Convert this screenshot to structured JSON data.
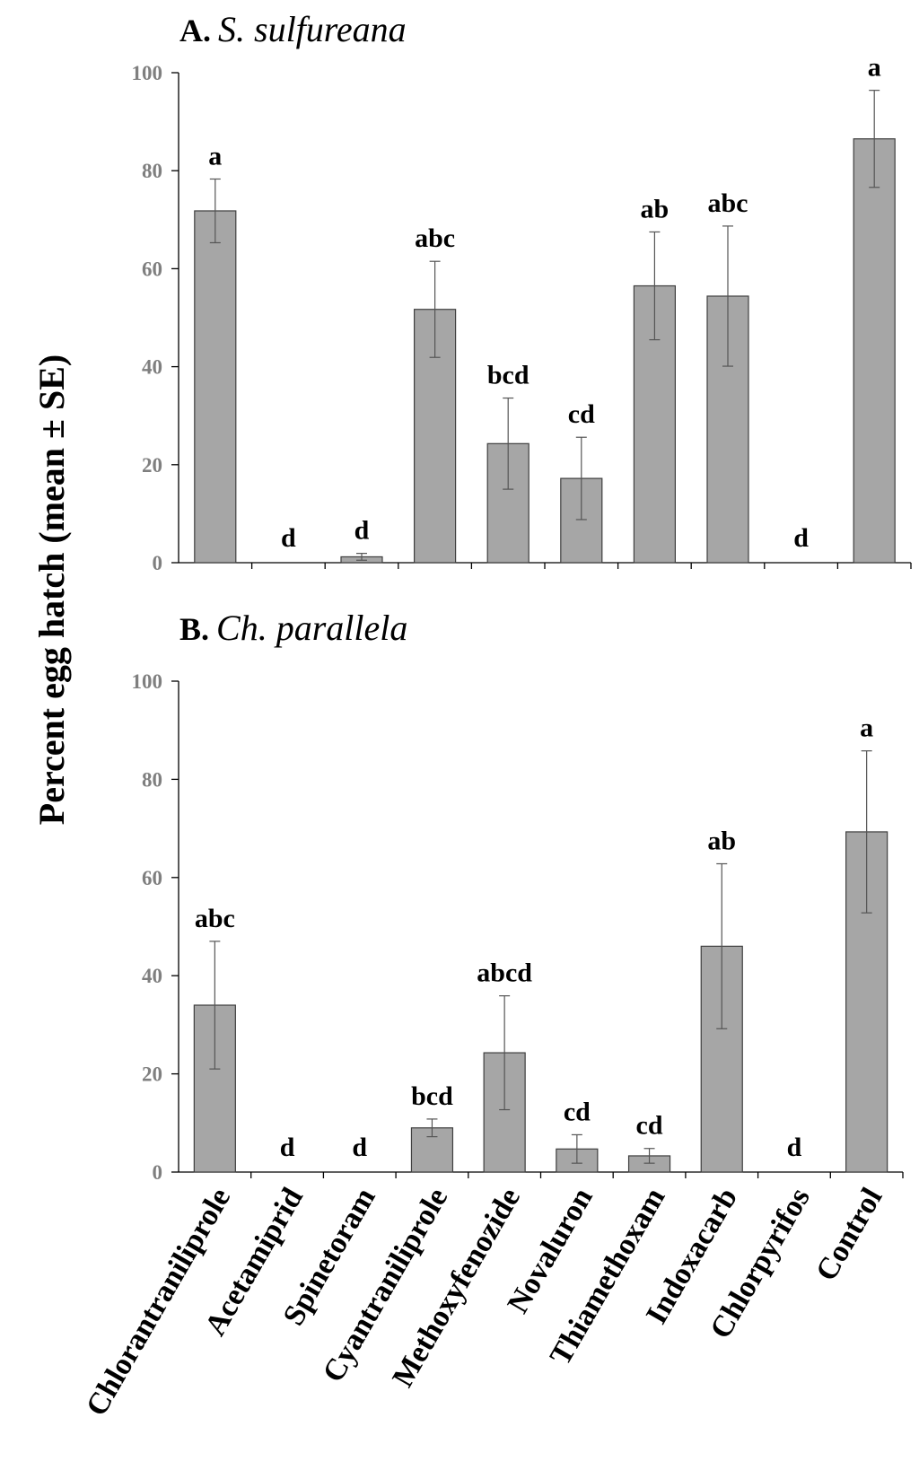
{
  "y_axis_label": "Percent egg hatch (mean ± SE)",
  "chart_data": [
    {
      "type": "bar",
      "panel_letter": "A.",
      "species": "S. sulfureana",
      "ylim": [
        0,
        100
      ],
      "yticks": [
        "0",
        "20",
        "40",
        "60",
        "80",
        "100"
      ],
      "categories": [
        "Chlorantraniliprole",
        "Acetamiprid",
        "Spinetoram",
        "Cyantraniliprole",
        "Methoxyfenozide",
        "Novaluron",
        "Thiamethoxam",
        "Indoxacarb",
        "Chlorpyrifos",
        "Control"
      ],
      "values": [
        71.8,
        0,
        1.2,
        51.7,
        24.3,
        17.2,
        56.5,
        54.4,
        0,
        86.5
      ],
      "se": [
        6.5,
        0,
        0.7,
        9.8,
        9.3,
        8.4,
        11.0,
        14.3,
        0,
        9.9
      ],
      "letters": [
        "a",
        "d",
        "d",
        "abc",
        "bcd",
        "cd",
        "ab",
        "abc",
        "d",
        "a"
      ]
    },
    {
      "type": "bar",
      "panel_letter": "B.",
      "species": "Ch. parallela",
      "ylim": [
        0,
        100
      ],
      "yticks": [
        "0",
        "20",
        "40",
        "60",
        "80",
        "100"
      ],
      "categories": [
        "Chlorantraniliprole",
        "Acetamiprid",
        "Spinetoram",
        "Cyantraniliprole",
        "Methoxyfenozide",
        "Novaluron",
        "Thiamethoxam",
        "Indoxacarb",
        "Chlorpyrifos",
        "Control"
      ],
      "values": [
        34.0,
        0,
        0,
        9.0,
        24.3,
        4.7,
        3.3,
        46.0,
        0,
        69.3
      ],
      "se": [
        13.0,
        0,
        0,
        1.8,
        11.6,
        2.9,
        1.5,
        16.8,
        0,
        16.5
      ],
      "letters": [
        "abc",
        "d",
        "d",
        "bcd",
        "abcd",
        "cd",
        "cd",
        "ab",
        "d",
        "a"
      ]
    }
  ]
}
